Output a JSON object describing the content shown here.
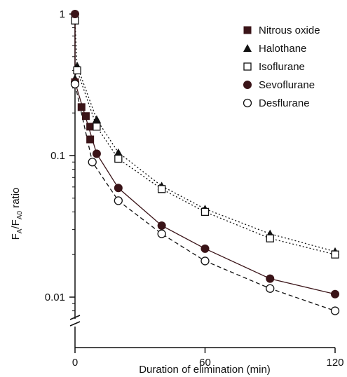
{
  "chart_data": {
    "type": "line",
    "title": "",
    "xlabel": "Duration of elimination (min)",
    "ylabel_main": "F",
    "ylabel_sub1": "A",
    "ylabel_mid": "/F",
    "ylabel_sub2": "A0",
    "ylabel_tail": " ratio",
    "yscale": "log",
    "xlim": [
      0,
      120
    ],
    "ylim": [
      0.006,
      1
    ],
    "x_ticks": [
      0,
      60,
      120
    ],
    "x_tick_labels": [
      "0",
      "60",
      "120"
    ],
    "y_ticks": [
      1,
      0.1,
      0.01
    ],
    "y_tick_labels": [
      "1",
      "0.1",
      "0.01"
    ],
    "axis_break": "y-axis",
    "grid": false,
    "legend_position": "top-right",
    "series": [
      {
        "name": "Nitrous oxide",
        "marker": "filled-square",
        "line": "none",
        "color": "#3a1418",
        "x": [
          0,
          3,
          5,
          7,
          7
        ],
        "y": [
          0.33,
          0.22,
          0.19,
          0.16,
          0.13
        ]
      },
      {
        "name": "Halothane",
        "marker": "filled-triangle",
        "line": "dotted",
        "color": "#111111",
        "x": [
          0,
          1,
          10,
          20,
          40,
          60,
          90,
          120
        ],
        "y": [
          0.35,
          0.43,
          0.18,
          0.105,
          0.061,
          0.042,
          0.028,
          0.021
        ]
      },
      {
        "name": "Isoflurane",
        "marker": "open-square",
        "line": "dotted",
        "color": "#111111",
        "x": [
          0,
          1,
          10,
          20,
          40,
          60,
          90,
          120
        ],
        "y": [
          0.9,
          0.4,
          0.16,
          0.095,
          0.058,
          0.04,
          0.026,
          0.02
        ]
      },
      {
        "name": "Sevoflurane",
        "marker": "filled-circle",
        "line": "solid",
        "color": "#3a1418",
        "x": [
          0,
          0,
          10,
          20,
          40,
          60,
          90,
          120
        ],
        "y": [
          1.0,
          0.33,
          0.103,
          0.059,
          0.032,
          0.022,
          0.0135,
          0.0105
        ]
      },
      {
        "name": "Desflurane",
        "marker": "open-circle",
        "line": "dashed",
        "color": "#111111",
        "x": [
          0,
          8,
          20,
          40,
          60,
          90,
          120
        ],
        "y": [
          0.32,
          0.09,
          0.048,
          0.028,
          0.018,
          0.0115,
          0.008
        ]
      }
    ]
  }
}
